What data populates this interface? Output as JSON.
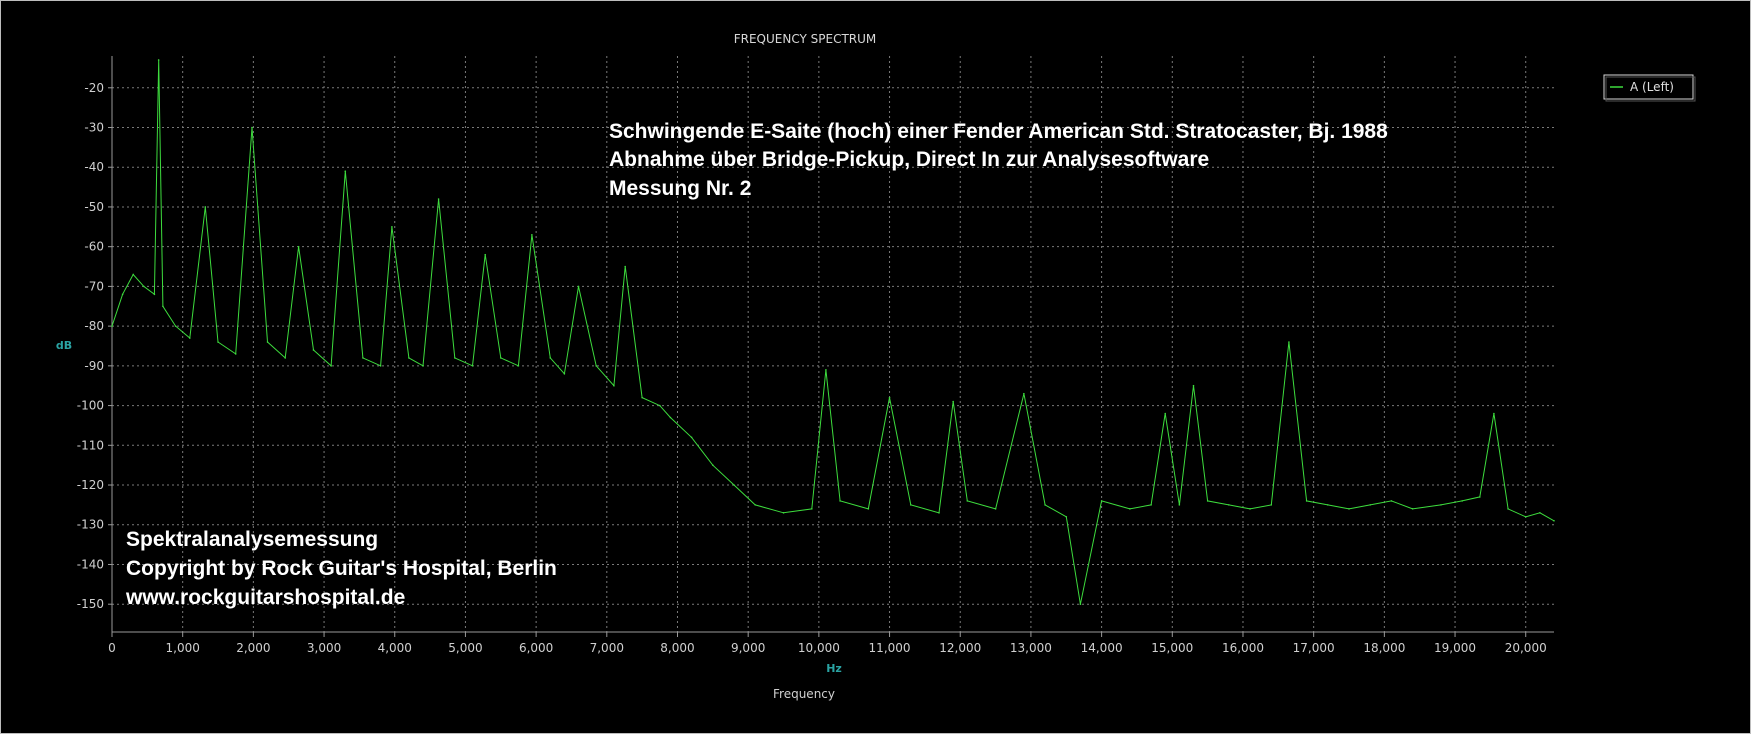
{
  "chart_data": {
    "type": "line",
    "title": "FREQUENCY SPECTRUM",
    "ylabel_unit": "dB",
    "xlabel_unit": "Hz",
    "xlabel": "Frequency",
    "xlim": [
      0,
      20400
    ],
    "ylim": [
      -157,
      -12
    ],
    "grid": true,
    "legend_position": "top-right",
    "x_ticks": [
      0,
      1000,
      2000,
      3000,
      4000,
      5000,
      6000,
      7000,
      8000,
      9000,
      10000,
      11000,
      12000,
      13000,
      14000,
      15000,
      16000,
      17000,
      18000,
      19000,
      20000
    ],
    "x_tick_labels": [
      "0",
      "1,000",
      "2,000",
      "3,000",
      "4,000",
      "5,000",
      "6,000",
      "7,000",
      "8,000",
      "9,000",
      "10,000",
      "11,000",
      "12,000",
      "13,000",
      "14,000",
      "15,000",
      "16,000",
      "17,000",
      "18,000",
      "19,000",
      "20,000"
    ],
    "y_ticks": [
      -20,
      -30,
      -40,
      -50,
      -60,
      -70,
      -80,
      -90,
      -100,
      -110,
      -120,
      -130,
      -140,
      -150
    ],
    "y_tick_labels": [
      "-20",
      "-30",
      "-40",
      "-50",
      "-60",
      "-70",
      "-80",
      "-90",
      "-100",
      "-110",
      "-120",
      "-130",
      "-140",
      "-150"
    ],
    "series": [
      {
        "name": "A (Left)",
        "color": "#3ddc3d",
        "x": [
          0,
          150,
          300,
          450,
          600,
          660,
          720,
          900,
          1100,
          1320,
          1500,
          1750,
          1980,
          2200,
          2450,
          2640,
          2850,
          3100,
          3300,
          3550,
          3800,
          3960,
          4200,
          4400,
          4620,
          4850,
          5100,
          5280,
          5500,
          5750,
          5940,
          6200,
          6400,
          6600,
          6850,
          7100,
          7260,
          7500,
          7750,
          7900,
          8200,
          8500,
          8800,
          9100,
          9500,
          9900,
          10100,
          10300,
          10700,
          11000,
          11300,
          11700,
          11900,
          12100,
          12500,
          12900,
          13200,
          13500,
          13700,
          14000,
          14400,
          14700,
          14900,
          15100,
          15300,
          15500,
          15800,
          16100,
          16400,
          16650,
          16900,
          17200,
          17500,
          17800,
          18100,
          18400,
          18800,
          19100,
          19350,
          19550,
          19750,
          20000,
          20200,
          20400
        ],
        "values": [
          -80,
          -72,
          -67,
          -70,
          -72,
          -13,
          -75,
          -80,
          -83,
          -50,
          -84,
          -87,
          -30,
          -84,
          -88,
          -60,
          -86,
          -90,
          -41,
          -88,
          -90,
          -55,
          -88,
          -90,
          -48,
          -88,
          -90,
          -62,
          -88,
          -90,
          -57,
          -88,
          -92,
          -70,
          -90,
          -95,
          -65,
          -98,
          -100,
          -103,
          -108,
          -115,
          -120,
          -125,
          -127,
          -126,
          -91,
          -124,
          -126,
          -98,
          -125,
          -127,
          -99,
          -124,
          -126,
          -97,
          -125,
          -128,
          -150,
          -124,
          -126,
          -125,
          -102,
          -125,
          -95,
          -124,
          -125,
          -126,
          -125,
          -84,
          -124,
          -125,
          -126,
          -125,
          -124,
          -126,
          -125,
          -124,
          -123,
          -102,
          -126,
          -128,
          -127,
          -129
        ]
      }
    ],
    "annotations": [
      "Schwingende E-Saite (hoch) einer Fender American Std. Stratocaster, Bj. 1988",
      "Abnahme über Bridge-Pickup, Direct In zur Analysesoftware",
      "Messung Nr. 2",
      "Spektralanalysemessung",
      "Copyright by Rock Guitar's Hospital, Berlin",
      "www.rockguitarshospital.de"
    ]
  }
}
